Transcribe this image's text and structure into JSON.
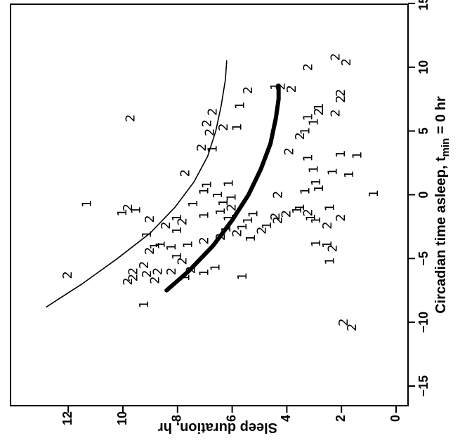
{
  "chart_data": {
    "type": "scatter",
    "orientation": "rotated 90° counter-clockwise",
    "xlabel": "Circadian time asleep, t",
    "xlabel_subscript": "min",
    "xlabel_suffix": " = 0 hr",
    "ylabel": "Sleep duration, hr",
    "xlim": [
      -15,
      15
    ],
    "ylim": [
      0,
      13
    ],
    "x_ticks": [
      "−15",
      "−10",
      "−5",
      "0",
      "5",
      "10",
      "15"
    ],
    "y_ticks": [
      "0",
      "2",
      "4",
      "6",
      "8",
      "10",
      "12"
    ],
    "grid": false,
    "legend": "none",
    "series": [
      {
        "points": [
          {
            "x": -6.3,
            "y": 12.0,
            "label": "2"
          },
          {
            "x": -5.5,
            "y": 9.2,
            "label": "2"
          },
          {
            "x": -6.2,
            "y": 9.1,
            "label": "2"
          },
          {
            "x": -6.0,
            "y": 8.7,
            "label": "2"
          },
          {
            "x": -6.7,
            "y": 8.8,
            "label": "2"
          },
          {
            "x": -6.5,
            "y": 9.6,
            "label": "2"
          },
          {
            "x": -6.0,
            "y": 9.6,
            "label": "2"
          },
          {
            "x": -6.8,
            "y": 9.8,
            "label": "2"
          },
          {
            "x": -8.6,
            "y": 9.2,
            "label": "1"
          },
          {
            "x": -6.0,
            "y": 8.2,
            "label": "2"
          },
          {
            "x": -6.5,
            "y": 7.7,
            "label": "1"
          },
          {
            "x": -5.2,
            "y": 7.8,
            "label": "2"
          },
          {
            "x": -5.9,
            "y": 7.5,
            "label": "2"
          },
          {
            "x": -6.1,
            "y": 7.0,
            "label": "1"
          },
          {
            "x": -5.7,
            "y": 6.6,
            "label": "1"
          },
          {
            "x": -4.8,
            "y": 8.0,
            "label": "1"
          },
          {
            "x": -4.4,
            "y": 9.0,
            "label": "2"
          },
          {
            "x": -4.1,
            "y": 8.2,
            "label": "1"
          },
          {
            "x": -3.9,
            "y": 7.6,
            "label": "1"
          },
          {
            "x": -3.6,
            "y": 7.0,
            "label": "2"
          },
          {
            "x": -3.3,
            "y": 6.4,
            "label": "2"
          },
          {
            "x": -4.0,
            "y": 8.8,
            "label": "1"
          },
          {
            "x": -3.9,
            "y": 8.6,
            "label": "1"
          },
          {
            "x": -2.4,
            "y": 8.4,
            "label": "2"
          },
          {
            "x": -2.8,
            "y": 8.0,
            "label": "1"
          },
          {
            "x": -2.7,
            "y": 6.2,
            "label": "1"
          },
          {
            "x": -1.8,
            "y": 6.1,
            "label": "1"
          },
          {
            "x": -2.1,
            "y": 7.8,
            "label": "2"
          },
          {
            "x": -3.1,
            "y": 9.1,
            "label": "1"
          },
          {
            "x": -1.9,
            "y": 9.0,
            "label": "2"
          },
          {
            "x": -1.6,
            "y": 7.0,
            "label": "1"
          },
          {
            "x": -1.3,
            "y": 6.4,
            "label": "1"
          },
          {
            "x": -1.0,
            "y": 6.0,
            "label": "2"
          },
          {
            "x": -1.8,
            "y": 8.0,
            "label": "1"
          },
          {
            "x": -0.7,
            "y": 7.4,
            "label": "1"
          },
          {
            "x": -0.6,
            "y": 6.3,
            "label": "1"
          },
          {
            "x": -0.2,
            "y": 6.0,
            "label": "1"
          },
          {
            "x": 0.0,
            "y": 6.5,
            "label": "1"
          },
          {
            "x": 0.3,
            "y": 7.0,
            "label": "1"
          },
          {
            "x": -1.4,
            "y": 10.0,
            "label": "1"
          },
          {
            "x": -1.0,
            "y": 9.8,
            "label": "2"
          },
          {
            "x": -1.2,
            "y": 9.5,
            "label": "1"
          },
          {
            "x": -0.7,
            "y": 11.3,
            "label": "1"
          },
          {
            "x": -2.5,
            "y": 5.6,
            "label": "1"
          },
          {
            "x": -2.0,
            "y": 5.4,
            "label": "1"
          },
          {
            "x": -1.5,
            "y": 5.2,
            "label": "1"
          },
          {
            "x": -3.0,
            "y": 5.8,
            "label": "2"
          },
          {
            "x": -2.8,
            "y": 4.9,
            "label": "2"
          },
          {
            "x": -2.4,
            "y": 4.7,
            "label": "1"
          },
          {
            "x": -2.0,
            "y": 4.3,
            "label": "2"
          },
          {
            "x": -1.7,
            "y": 4.4,
            "label": "2"
          },
          {
            "x": -1.2,
            "y": 3.6,
            "label": "1"
          },
          {
            "x": -1.0,
            "y": 3.5,
            "label": "1"
          },
          {
            "x": -1.5,
            "y": 4.0,
            "label": "2"
          },
          {
            "x": -1.8,
            "y": 3.1,
            "label": "1"
          },
          {
            "x": -1.4,
            "y": 3.2,
            "label": "2"
          },
          {
            "x": -2.0,
            "y": 2.9,
            "label": "1"
          },
          {
            "x": -2.4,
            "y": 2.5,
            "label": "2"
          },
          {
            "x": -1.8,
            "y": 2.0,
            "label": "2"
          },
          {
            "x": -1.0,
            "y": 2.4,
            "label": "1"
          },
          {
            "x": 0.0,
            "y": 4.3,
            "label": "2"
          },
          {
            "x": 0.3,
            "y": 3.3,
            "label": "1"
          },
          {
            "x": 1.0,
            "y": 2.9,
            "label": "1"
          },
          {
            "x": 0.5,
            "y": 2.8,
            "label": "1"
          },
          {
            "x": 2.0,
            "y": 3.0,
            "label": "1"
          },
          {
            "x": 1.8,
            "y": 2.3,
            "label": "1"
          },
          {
            "x": 1.6,
            "y": 1.7,
            "label": "1"
          },
          {
            "x": 0.1,
            "y": 0.8,
            "label": "1"
          },
          {
            "x": -3.8,
            "y": 2.9,
            "label": "1"
          },
          {
            "x": -3.9,
            "y": 2.5,
            "label": "1"
          },
          {
            "x": -5.2,
            "y": 2.4,
            "label": "1"
          },
          {
            "x": -4.2,
            "y": 2.3,
            "label": "2"
          },
          {
            "x": -6.4,
            "y": 5.6,
            "label": "1"
          },
          {
            "x": -3.4,
            "y": 5.3,
            "label": "1"
          },
          {
            "x": -10.0,
            "y": 1.9,
            "label": "2"
          },
          {
            "x": -10.4,
            "y": 1.6,
            "label": "2"
          },
          {
            "x": 10.8,
            "y": 2.2,
            "label": "2"
          },
          {
            "x": 10.4,
            "y": 1.8,
            "label": "2"
          },
          {
            "x": 10.0,
            "y": 3.2,
            "label": "2"
          },
          {
            "x": 8.5,
            "y": 4.2,
            "label": "2"
          },
          {
            "x": 8.3,
            "y": 3.8,
            "label": "2"
          },
          {
            "x": 8.5,
            "y": 4.4,
            "label": "1"
          },
          {
            "x": 8.2,
            "y": 5.4,
            "label": "2"
          },
          {
            "x": 7.0,
            "y": 5.7,
            "label": "1"
          },
          {
            "x": 7.5,
            "y": 2.0,
            "label": "2"
          },
          {
            "x": 6.0,
            "y": 9.7,
            "label": "2"
          },
          {
            "x": 6.5,
            "y": 6.7,
            "label": "2"
          },
          {
            "x": 5.6,
            "y": 6.9,
            "label": "2"
          },
          {
            "x": 5.3,
            "y": 6.3,
            "label": "2"
          },
          {
            "x": 4.9,
            "y": 6.8,
            "label": "2"
          },
          {
            "x": 3.7,
            "y": 7.1,
            "label": "2"
          },
          {
            "x": 3.6,
            "y": 6.7,
            "label": "1"
          },
          {
            "x": 5.3,
            "y": 5.8,
            "label": "1"
          },
          {
            "x": 5.0,
            "y": 3.3,
            "label": "1"
          },
          {
            "x": 4.6,
            "y": 3.5,
            "label": "2"
          },
          {
            "x": 3.4,
            "y": 3.9,
            "label": "2"
          },
          {
            "x": 2.9,
            "y": 3.2,
            "label": "1"
          },
          {
            "x": 1.7,
            "y": 7.7,
            "label": "2"
          },
          {
            "x": 0.8,
            "y": 6.9,
            "label": "1"
          },
          {
            "x": 0.9,
            "y": 6.1,
            "label": "1"
          },
          {
            "x": 6.1,
            "y": 3.2,
            "label": "1"
          },
          {
            "x": 6.5,
            "y": 2.8,
            "label": "2"
          },
          {
            "x": 5.7,
            "y": 3.0,
            "label": "1"
          },
          {
            "x": 6.9,
            "y": 2.8,
            "label": "1"
          },
          {
            "x": 3.2,
            "y": 2.0,
            "label": "1"
          },
          {
            "x": 3.1,
            "y": 1.4,
            "label": "1"
          },
          {
            "x": 8.0,
            "y": 2.0,
            "label": "2"
          },
          {
            "x": 6.4,
            "y": 2.2,
            "label": "2"
          }
        ]
      }
    ],
    "curves": [
      {
        "style": "thin",
        "points": [
          [
            -8.8,
            12.8
          ],
          [
            -7,
            11.5
          ],
          [
            -5,
            10.2
          ],
          [
            -3,
            9.0
          ],
          [
            -1,
            8.1
          ],
          [
            1,
            7.4
          ],
          [
            3,
            6.9
          ],
          [
            5,
            6.6
          ],
          [
            7,
            6.4
          ],
          [
            9,
            6.25
          ],
          [
            10.5,
            6.2
          ]
        ]
      },
      {
        "style": "thick",
        "points": [
          [
            -7.5,
            8.4
          ],
          [
            -6,
            7.6
          ],
          [
            -4,
            6.7
          ],
          [
            -2,
            6.0
          ],
          [
            0,
            5.4
          ],
          [
            2,
            4.95
          ],
          [
            4,
            4.6
          ],
          [
            6,
            4.4
          ],
          [
            7.5,
            4.3
          ],
          [
            8.5,
            4.3
          ]
        ]
      }
    ]
  }
}
